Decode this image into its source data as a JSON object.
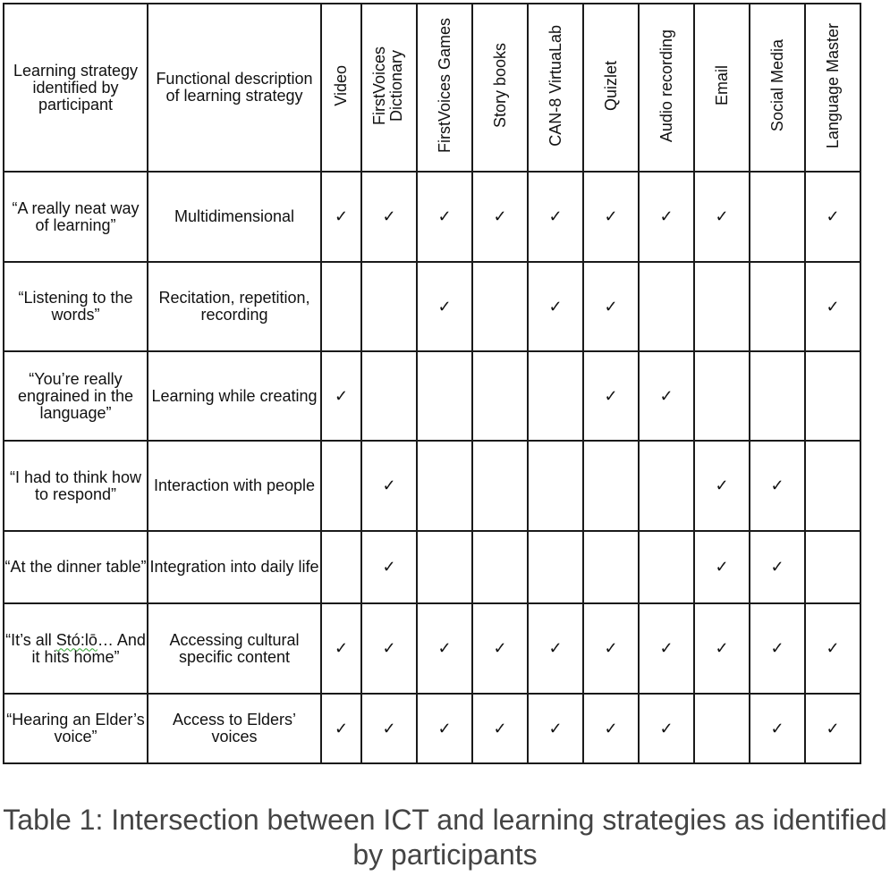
{
  "table": {
    "header_strategy": "Learning strategy identified by participant",
    "header_function": "Functional description of learning strategy",
    "tools": [
      "Video",
      "FirstVoices Dictionary",
      "FirstVoices Games",
      "Story books",
      "CAN-8 VirtuaLab",
      "Quizlet",
      "Audio recording",
      "Email",
      "Social Media",
      "Language Master"
    ],
    "check_mark": "✓",
    "rows": [
      {
        "strategy": "“A really neat way of learning”",
        "function": "Multidimensional",
        "marks": [
          true,
          true,
          true,
          true,
          true,
          true,
          true,
          true,
          false,
          true
        ]
      },
      {
        "strategy": "“Listening to the words”",
        "function": "Recitation, repetition, recording",
        "marks": [
          false,
          false,
          true,
          false,
          true,
          true,
          false,
          false,
          false,
          true
        ]
      },
      {
        "strategy": "“You’re really engrained in the language”",
        "function": "Learning while creating",
        "marks": [
          true,
          false,
          false,
          false,
          false,
          true,
          true,
          false,
          false,
          false
        ]
      },
      {
        "strategy": "“I had to think how to respond”",
        "function": "Interaction with people",
        "marks": [
          false,
          true,
          false,
          false,
          false,
          false,
          false,
          true,
          true,
          false
        ]
      },
      {
        "strategy": "“At the dinner table”",
        "function": "Integration into daily life",
        "marks": [
          false,
          true,
          false,
          false,
          false,
          false,
          false,
          true,
          true,
          false
        ]
      },
      {
        "strategy_pre": "“It’s all ",
        "strategy_word": "Stó:lō",
        "strategy_post": "… And it hits home”",
        "function": "Accessing cultural specific content",
        "marks": [
          true,
          true,
          true,
          true,
          true,
          true,
          true,
          true,
          true,
          true
        ]
      },
      {
        "strategy": "“Hearing an Elder’s voice”",
        "function": "Access to Elders’ voices",
        "marks": [
          true,
          true,
          true,
          true,
          true,
          true,
          true,
          false,
          true,
          true
        ]
      }
    ]
  },
  "caption": "Table 1: Intersection between ICT and learning strategies as identified by participants"
}
